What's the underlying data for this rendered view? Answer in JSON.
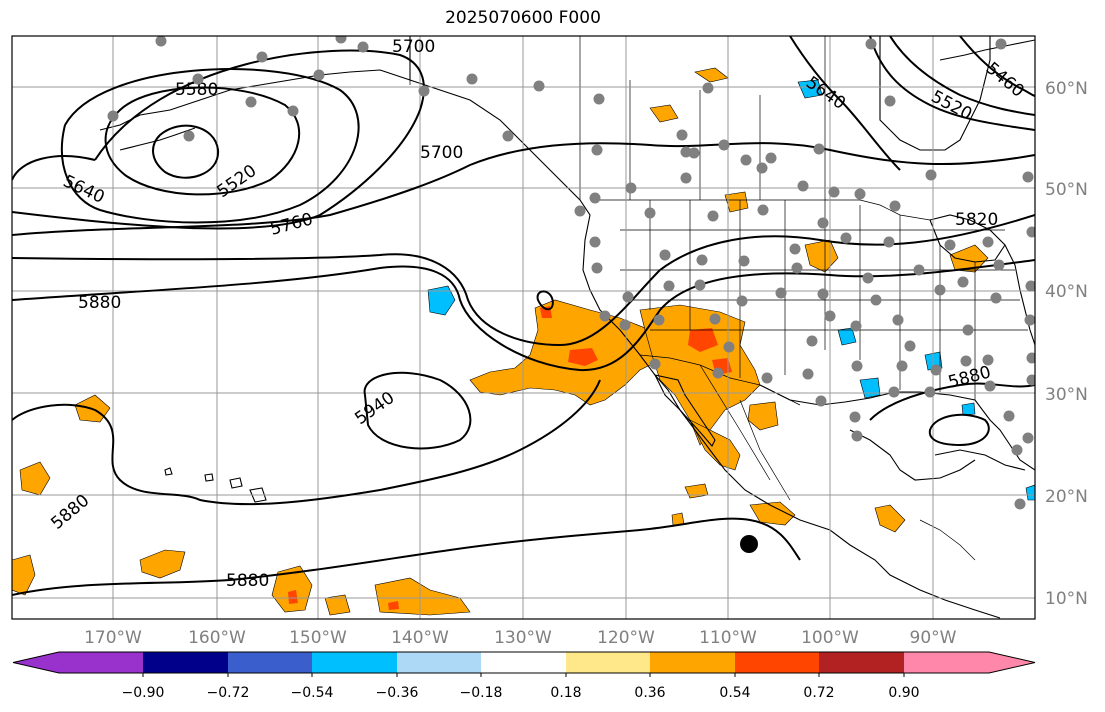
{
  "title": "2025070600 F000",
  "map": {
    "projection": "lat-lon",
    "lon_range": [
      "175°W",
      "82°W"
    ],
    "lat_range": [
      "8°N",
      "65°N"
    ],
    "lon_ticks": [
      "170°W",
      "160°W",
      "150°W",
      "140°W",
      "130°W",
      "120°W",
      "110°W",
      "100°W",
      "90°W"
    ],
    "lat_ticks": [
      "60°N",
      "50°N",
      "40°N",
      "30°N",
      "20°N",
      "10°N"
    ],
    "grid": true,
    "colors": {
      "land_outline": "#000000",
      "grid": "#999999",
      "station": "#808080",
      "contour": "#000000"
    }
  },
  "contour_labels": [
    "5700",
    "5580",
    "5640",
    "5520",
    "5460",
    "5700",
    "5520",
    "5640",
    "5760",
    "5820",
    "5880",
    "5940",
    "5880",
    "5880",
    "5880"
  ],
  "fill_colors": {
    "pos_036": "#ffa500",
    "pos_054": "#ff4500",
    "pos_018": "#ffe88a",
    "neg_036": "#00bfff",
    "neg_018": "#add8f6"
  },
  "colorbar": {
    "colors": [
      "#9932cc",
      "#00008b",
      "#3a5fcd",
      "#00bfff",
      "#add8f6",
      "#ffffff",
      "#ffe88a",
      "#ffa500",
      "#ff4500",
      "#b22222",
      "#ff88aa"
    ],
    "tick_labels": [
      "−0.90",
      "−0.72",
      "−0.54",
      "−0.36",
      "−0.18",
      "0.18",
      "0.36",
      "0.54",
      "0.72",
      "0.90"
    ]
  }
}
